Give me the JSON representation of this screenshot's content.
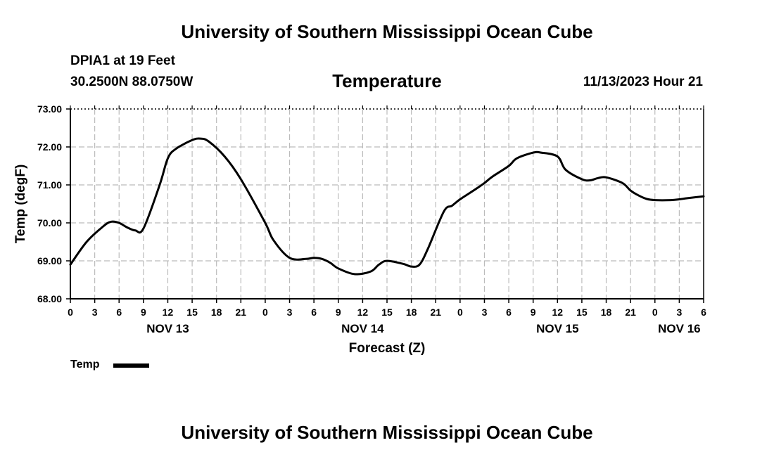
{
  "header": {
    "title": "University of Southern Mississippi Ocean Cube",
    "station": "DPIA1 at 19 Feet",
    "coords": "30.2500N  88.0750W",
    "date": "11/13/2023 Hour 21"
  },
  "footer": {
    "title": "University of Southern Mississippi Ocean Cube"
  },
  "chart_data": {
    "type": "line",
    "title": "Temperature",
    "xlabel": "Forecast (Z)",
    "ylabel": "Temp (degF)",
    "ylim": [
      68.0,
      73.0
    ],
    "yticks": [
      "68.00",
      "69.00",
      "70.00",
      "71.00",
      "72.00",
      "73.00"
    ],
    "xlim": [
      0,
      78
    ],
    "xtick_step_hours": 3,
    "xtick_labels": [
      "0",
      "3",
      "6",
      "9",
      "12",
      "15",
      "18",
      "21",
      "0",
      "3",
      "6",
      "9",
      "12",
      "15",
      "18",
      "21",
      "0",
      "3",
      "6",
      "9",
      "12",
      "15",
      "18",
      "21",
      "0",
      "3",
      "6"
    ],
    "date_labels": [
      {
        "label": "NOV 13",
        "hour": 12
      },
      {
        "label": "NOV 14",
        "hour": 36
      },
      {
        "label": "NOV 15",
        "hour": 60
      },
      {
        "label": "NOV 16",
        "hour": 75
      }
    ],
    "grid": true,
    "legend": "bottom-left",
    "series": [
      {
        "name": "Temp",
        "color": "#000000",
        "x": [
          0,
          2,
          4,
          5,
          6,
          7,
          8,
          9,
          11,
          12,
          13,
          15,
          16,
          17,
          19,
          21,
          24,
          25,
          27,
          29,
          30,
          31,
          32,
          33,
          35,
          37,
          38,
          39,
          41,
          42,
          43,
          44,
          46,
          47,
          48,
          50,
          51,
          52,
          54,
          55,
          57,
          58,
          60,
          61,
          63,
          64,
          65,
          66,
          68,
          69,
          70,
          71,
          72,
          74,
          75,
          76,
          78
        ],
        "values": [
          68.9,
          69.5,
          69.9,
          70.03,
          70.0,
          69.88,
          69.8,
          69.85,
          71.0,
          71.7,
          71.95,
          72.18,
          72.22,
          72.15,
          71.75,
          71.15,
          70.0,
          69.55,
          69.08,
          69.05,
          69.08,
          69.05,
          68.95,
          68.8,
          68.65,
          68.72,
          68.9,
          69.0,
          68.92,
          68.85,
          68.9,
          69.3,
          70.3,
          70.45,
          70.62,
          70.9,
          71.05,
          71.22,
          71.5,
          71.7,
          71.85,
          71.85,
          71.75,
          71.4,
          71.15,
          71.12,
          71.18,
          71.2,
          71.05,
          70.85,
          70.72,
          70.63,
          70.6,
          70.6,
          70.62,
          70.65,
          70.7
        ]
      }
    ]
  }
}
